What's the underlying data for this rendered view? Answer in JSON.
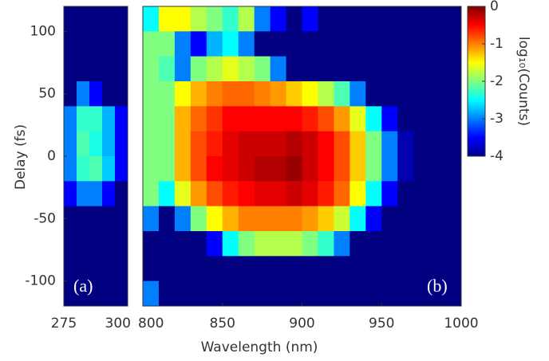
{
  "chart_data": {
    "type": "heatmap",
    "xlabel": "Wavelength (nm)",
    "ylabel": "Delay (fs)",
    "ylim": [
      -120,
      120
    ],
    "yticks": [
      -100,
      -50,
      0,
      50,
      100
    ],
    "colorbar": {
      "label": "log₁₀(Counts)",
      "lim": [
        -4,
        0
      ],
      "ticks": [
        0,
        -1,
        -2,
        -3,
        -4
      ],
      "colormap": "jet"
    },
    "y": [
      110,
      90,
      70,
      50,
      30,
      10,
      -10,
      -30,
      -50,
      -70,
      -90,
      -110
    ],
    "panels": [
      {
        "label": "(a)",
        "xlim": [
          275,
          300
        ],
        "xticks": [
          275,
          300
        ],
        "x": [
          277.5,
          282.5,
          287.5,
          292.5,
          297.5
        ],
        "z": [
          [
            -4,
            -4,
            -4,
            -4,
            -4
          ],
          [
            -4,
            -4,
            -4,
            -4,
            -4
          ],
          [
            -4,
            -4,
            -4,
            -4,
            -4
          ],
          [
            -4,
            -3,
            -3.5,
            -4,
            -4
          ],
          [
            -3,
            -2.3,
            -2.3,
            -2.8,
            -3.5
          ],
          [
            -3,
            -2.2,
            -2.4,
            -2.8,
            -3.5
          ],
          [
            -3,
            -2.3,
            -2.2,
            -2.7,
            -3.5
          ],
          [
            -3.5,
            -3,
            -3,
            -3.5,
            -4
          ],
          [
            -4,
            -4,
            -4,
            -4,
            -4
          ],
          [
            -4,
            -4,
            -4,
            -4,
            -4
          ],
          [
            -4,
            -4,
            -4,
            -4,
            -4
          ],
          [
            -4,
            -4,
            -4,
            -4,
            -4
          ]
        ]
      },
      {
        "label": "(b)",
        "xlim": [
          800,
          1000
        ],
        "xticks": [
          800,
          850,
          900,
          950,
          1000
        ],
        "x": [
          805,
          815,
          825,
          835,
          845,
          855,
          865,
          875,
          885,
          895,
          905,
          915,
          925,
          935,
          945,
          955,
          965,
          975,
          985,
          995
        ],
        "z": [
          [
            -2.5,
            -1.5,
            -1.5,
            -1.8,
            -2,
            -2.3,
            -1.8,
            -3,
            -3.5,
            -4,
            -3.5,
            -4,
            -4,
            -4,
            -4,
            -4,
            -4,
            -4,
            -4,
            -4
          ],
          [
            -2,
            -2,
            -3,
            -3.5,
            -2.8,
            -2.5,
            -3,
            -4,
            -4,
            -4,
            -4,
            -4,
            -4,
            -4,
            -4,
            -4,
            -4,
            -4,
            -4,
            -4
          ],
          [
            -2,
            -2.2,
            -3,
            -2,
            -1.8,
            -1.6,
            -1.8,
            -2,
            -3,
            -4,
            -4,
            -4,
            -4,
            -4,
            -4,
            -4,
            -4,
            -4,
            -4,
            -4
          ],
          [
            -2,
            -2,
            -1.5,
            -1.2,
            -1,
            -0.9,
            -0.9,
            -1,
            -1.1,
            -1.3,
            -1.5,
            -1.8,
            -2.2,
            -3,
            -4,
            -4,
            -4,
            -4,
            -4,
            -4
          ],
          [
            -2,
            -2,
            -1.2,
            -0.9,
            -0.7,
            -0.5,
            -0.5,
            -0.5,
            -0.5,
            -0.5,
            -0.6,
            -0.8,
            -1.1,
            -1.6,
            -2.5,
            -3.5,
            -4,
            -4,
            -4,
            -4
          ],
          [
            -2,
            -2,
            -1.2,
            -0.8,
            -0.6,
            -0.4,
            -0.3,
            -0.3,
            -0.3,
            -0.2,
            -0.3,
            -0.5,
            -0.8,
            -1.3,
            -2,
            -3,
            -3.8,
            -4,
            -4,
            -4
          ],
          [
            -2,
            -2,
            -1.2,
            -0.8,
            -0.5,
            -0.4,
            -0.3,
            -0.2,
            -0.2,
            -0.1,
            -0.3,
            -0.5,
            -0.8,
            -1.3,
            -2,
            -3,
            -3.8,
            -4,
            -4,
            -4
          ],
          [
            -2,
            -2.5,
            -1.6,
            -1.1,
            -0.8,
            -0.6,
            -0.5,
            -0.4,
            -0.4,
            -0.3,
            -0.4,
            -0.6,
            -0.9,
            -1.5,
            -2.5,
            -3.5,
            -4,
            -4,
            -4,
            -4
          ],
          [
            -3,
            -4,
            -3,
            -2,
            -1.5,
            -1.2,
            -1,
            -1,
            -1,
            -1,
            -1.1,
            -1.3,
            -1.7,
            -2.5,
            -3.5,
            -4,
            -4,
            -4,
            -4,
            -4
          ],
          [
            -4,
            -4,
            -4,
            -4,
            -3.5,
            -2.5,
            -2,
            -1.8,
            -1.8,
            -1.8,
            -2,
            -2.3,
            -3,
            -4,
            -4,
            -4,
            -4,
            -4,
            -4,
            -4
          ],
          [
            -4,
            -4,
            -4,
            -4,
            -4,
            -4,
            -4,
            -4,
            -4,
            -4,
            -4,
            -4,
            -4,
            -4,
            -4,
            -4,
            -4,
            -4,
            -4,
            -4
          ],
          [
            -3,
            -4,
            -4,
            -4,
            -4,
            -4,
            -4,
            -4,
            -4,
            -4,
            -4,
            -4,
            -4,
            -4,
            -4,
            -4,
            -4,
            -4,
            -4,
            -4
          ]
        ]
      }
    ]
  }
}
